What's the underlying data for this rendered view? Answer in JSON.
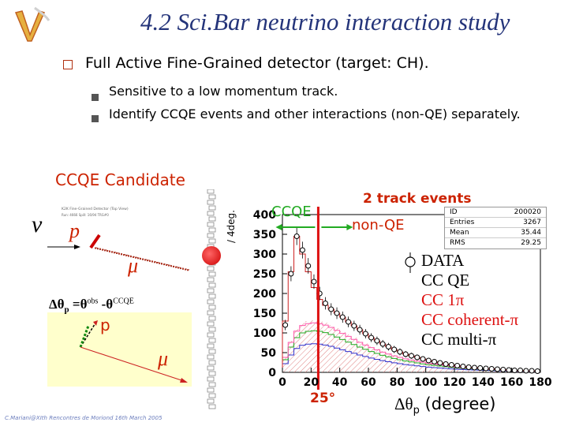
{
  "slide": {
    "title": "4.2 Sci.Bar neutrino interaction study",
    "footer": "C.Mariani@XIth Rencontres de Moriond 16th March 2005"
  },
  "bullets": {
    "main": "Full Active Fine-Grained detector (target: CH).",
    "sub": [
      "Sensitive to a low momentum track.",
      "Identify CCQE events and other interactions (non-QE) separately."
    ]
  },
  "candidate": {
    "title": "CCQE Candidate",
    "nu": "ν",
    "p_label": "p",
    "mu_label": "μ",
    "formula_lhs": "Δθ",
    "formula_sub": "p",
    "formula_eq": " =θ",
    "formula_obs": "obs",
    "formula_minus": " -θ",
    "formula_ccqe": "CCQE",
    "p2_label": "p",
    "mu2_label": "μ",
    "event_header_1": "K2K Fine-Grained Detector (Top View)",
    "event_header_2": "Run: 4666 Spill: 16/94 TRG#0"
  },
  "plot": {
    "two_track": "2 track events",
    "ccqe_label": "CCQE",
    "nonqe_label": "non-QE",
    "ylabel": "/ 4deg.",
    "xlabel_symbol": "Δθ",
    "xlabel_sub": "p",
    "xlabel_unit": " (degree)",
    "cut_label": "25°",
    "stats": [
      {
        "k": "ID",
        "v": "200020"
      },
      {
        "k": "Entries",
        "v": "3267"
      },
      {
        "k": "Mean",
        "v": "35.44"
      },
      {
        "k": "RMS",
        "v": "29.25"
      }
    ],
    "legend": [
      {
        "name": "DATA",
        "color": "#000000"
      },
      {
        "name": "CC QE",
        "color": "#000000"
      },
      {
        "name": "CC 1π",
        "color": "#dd1111"
      },
      {
        "name": "CC coherent-π",
        "color": "#dd1111"
      },
      {
        "name": "CC multi-π",
        "color": "#000000"
      }
    ]
  },
  "chart_data": {
    "type": "bar",
    "xlim": [
      0,
      180
    ],
    "ylim": [
      0,
      400
    ],
    "xticks": [
      0,
      20,
      40,
      60,
      80,
      100,
      120,
      140,
      160,
      180
    ],
    "yticks": [
      0,
      50,
      100,
      150,
      200,
      250,
      300,
      350,
      400
    ],
    "x": [
      2,
      6,
      10,
      14,
      18,
      22,
      26,
      30,
      34,
      38,
      42,
      46,
      50,
      54,
      58,
      62,
      66,
      70,
      74,
      78,
      82,
      86,
      90,
      94,
      98,
      102,
      106,
      110,
      114,
      118,
      122,
      126,
      130,
      134,
      138,
      142,
      146,
      150,
      154,
      158,
      162,
      166,
      170,
      174,
      178
    ],
    "series": [
      {
        "name": "DATA",
        "values": [
          120,
          250,
          345,
          310,
          270,
          230,
          200,
          175,
          160,
          150,
          140,
          128,
          118,
          108,
          98,
          88,
          80,
          72,
          65,
          58,
          52,
          46,
          42,
          38,
          34,
          30,
          27,
          24,
          21,
          19,
          17,
          15,
          13,
          12,
          11,
          10,
          9,
          8,
          7,
          6,
          5,
          5,
          4,
          4,
          3
        ]
      },
      {
        "name": "CC QE",
        "values": [
          130,
          255,
          345,
          300,
          255,
          215,
          185,
          170,
          160,
          150,
          140,
          128,
          118,
          108,
          98,
          88,
          80,
          72,
          65,
          58,
          52,
          46,
          42,
          38,
          34,
          30,
          27,
          24,
          21,
          19,
          17,
          15,
          13,
          12,
          11,
          10,
          9,
          8,
          7,
          6,
          5,
          5,
          4,
          4,
          3
        ]
      },
      {
        "name": "CC 1π",
        "values": [
          40,
          80,
          110,
          125,
          130,
          132,
          130,
          126,
          120,
          112,
          104,
          96,
          88,
          80,
          73,
          66,
          60,
          54,
          49,
          44,
          40,
          36,
          33,
          30,
          27,
          24,
          22,
          20,
          18,
          16,
          14,
          13,
          12,
          11,
          10,
          9,
          8,
          7,
          6,
          5,
          5,
          4,
          4,
          3,
          3
        ]
      }
    ],
    "cut_x": 25
  }
}
